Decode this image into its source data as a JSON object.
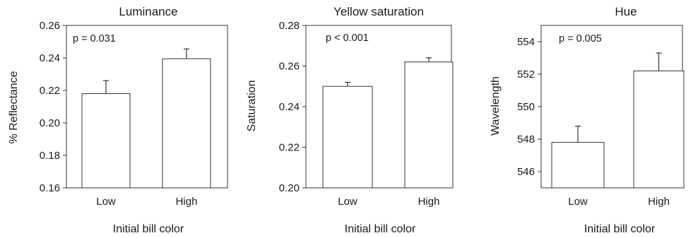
{
  "chart_data": [
    {
      "type": "bar",
      "title": "Luminance",
      "xlabel": "Initial bill color",
      "ylabel": "% Reflectance",
      "categories": [
        "Low",
        "High"
      ],
      "values": [
        0.218,
        0.2395
      ],
      "errors": [
        0.008,
        0.006
      ],
      "ylim": [
        0.16,
        0.26
      ],
      "yticks": [
        "0.16",
        "0.18",
        "0.20",
        "0.22",
        "0.24",
        "0.26"
      ],
      "annotation": "p = 0.031"
    },
    {
      "type": "bar",
      "title": "Yellow saturation",
      "xlabel": "Initial bill color",
      "ylabel": "Saturation",
      "categories": [
        "Low",
        "High"
      ],
      "values": [
        0.25,
        0.262
      ],
      "errors": [
        0.002,
        0.002
      ],
      "ylim": [
        0.2,
        0.28
      ],
      "yticks": [
        "0.20",
        "0.22",
        "0.24",
        "0.26",
        "0.28"
      ],
      "annotation": "p < 0.001"
    },
    {
      "type": "bar",
      "title": "Hue",
      "xlabel": "Initial bill color",
      "ylabel": "Wavelength",
      "categories": [
        "Low",
        "High"
      ],
      "values": [
        547.8,
        552.2
      ],
      "errors": [
        1.0,
        1.1
      ],
      "ylim": [
        545,
        555
      ],
      "yticks": [
        "546",
        "548",
        "550",
        "552",
        "554"
      ],
      "annotation": "p = 0.005"
    }
  ]
}
